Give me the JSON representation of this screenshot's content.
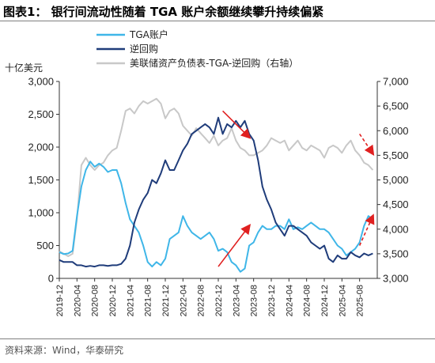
{
  "title": "图表1： 银行间流动性随着 TGA 账户余额继续攀升持续偏紧",
  "source": "资料来源：Wind，华泰研究",
  "colors": {
    "tga": "#3fb6e8",
    "rrp": "#1f3c7a",
    "fed_net": "#c8c8c8",
    "arrow": "#e02020"
  },
  "chart_data": {
    "type": "line",
    "left_unit": "十亿美元",
    "yleft": {
      "min": 0,
      "max": 3000,
      "ticks": [
        "0",
        "500",
        "1,000",
        "1,500",
        "2,000",
        "2,500",
        "3,000"
      ]
    },
    "yright": {
      "min": 3000,
      "max": 7000,
      "ticks": [
        "3,000",
        "3,500",
        "4,000",
        "4,500",
        "5,000",
        "5,500",
        "6,000",
        "6,500",
        "7,000"
      ]
    },
    "x_range": [
      "2019-12",
      "2025-12"
    ],
    "x_ticks": [
      "2019-12",
      "2020-04",
      "2020-08",
      "2020-12",
      "2021-04",
      "2021-08",
      "2021-12",
      "2022-04",
      "2022-08",
      "2022-12",
      "2023-04",
      "2023-08",
      "2023-12",
      "2024-04",
      "2024-08",
      "2024-12",
      "2025-04",
      "2025-08"
    ],
    "series": [
      {
        "name": "TGA账户",
        "axis": "left",
        "points": [
          [
            "2019-12",
            400
          ],
          [
            "2020-01",
            370
          ],
          [
            "2020-02",
            380
          ],
          [
            "2020-03",
            420
          ],
          [
            "2020-04",
            950
          ],
          [
            "2020-05",
            1400
          ],
          [
            "2020-06",
            1650
          ],
          [
            "2020-07",
            1780
          ],
          [
            "2020-08",
            1700
          ],
          [
            "2020-09",
            1750
          ],
          [
            "2020-10",
            1700
          ],
          [
            "2020-11",
            1620
          ],
          [
            "2020-12",
            1650
          ],
          [
            "2021-01",
            1650
          ],
          [
            "2021-02",
            1450
          ],
          [
            "2021-03",
            1150
          ],
          [
            "2021-04",
            900
          ],
          [
            "2021-05",
            800
          ],
          [
            "2021-06",
            700
          ],
          [
            "2021-07",
            500
          ],
          [
            "2021-08",
            250
          ],
          [
            "2021-09",
            180
          ],
          [
            "2021-10",
            250
          ],
          [
            "2021-11",
            200
          ],
          [
            "2021-12",
            300
          ],
          [
            "2022-01",
            600
          ],
          [
            "2022-02",
            650
          ],
          [
            "2022-03",
            700
          ],
          [
            "2022-04",
            950
          ],
          [
            "2022-05",
            800
          ],
          [
            "2022-06",
            700
          ],
          [
            "2022-07",
            650
          ],
          [
            "2022-08",
            600
          ],
          [
            "2022-09",
            650
          ],
          [
            "2022-10",
            700
          ],
          [
            "2022-11",
            600
          ],
          [
            "2022-12",
            420
          ],
          [
            "2023-01",
            450
          ],
          [
            "2023-02",
            400
          ],
          [
            "2023-03",
            250
          ],
          [
            "2023-04",
            200
          ],
          [
            "2023-05",
            100
          ],
          [
            "2023-06",
            150
          ],
          [
            "2023-07",
            500
          ],
          [
            "2023-08",
            550
          ],
          [
            "2023-09",
            700
          ],
          [
            "2023-10",
            800
          ],
          [
            "2023-11",
            750
          ],
          [
            "2023-12",
            750
          ],
          [
            "2024-01",
            800
          ],
          [
            "2024-02",
            800
          ],
          [
            "2024-03",
            750
          ],
          [
            "2024-04",
            900
          ],
          [
            "2024-05",
            750
          ],
          [
            "2024-06",
            780
          ],
          [
            "2024-07",
            750
          ],
          [
            "2024-08",
            800
          ],
          [
            "2024-09",
            850
          ],
          [
            "2024-10",
            800
          ],
          [
            "2024-11",
            750
          ],
          [
            "2024-12",
            750
          ],
          [
            "2025-01",
            700
          ],
          [
            "2025-02",
            600
          ],
          [
            "2025-03",
            500
          ],
          [
            "2025-04",
            450
          ],
          [
            "2025-05",
            350
          ],
          [
            "2025-06",
            400
          ],
          [
            "2025-07",
            450
          ],
          [
            "2025-08",
            550
          ],
          [
            "2025-09",
            800
          ],
          [
            "2025-10",
            950
          ],
          [
            "2025-11",
            900
          ]
        ]
      },
      {
        "name": "逆回购",
        "axis": "left",
        "points": [
          [
            "2019-12",
            280
          ],
          [
            "2020-01",
            250
          ],
          [
            "2020-02",
            250
          ],
          [
            "2020-03",
            250
          ],
          [
            "2020-04",
            200
          ],
          [
            "2020-05",
            200
          ],
          [
            "2020-06",
            180
          ],
          [
            "2020-07",
            190
          ],
          [
            "2020-08",
            180
          ],
          [
            "2020-09",
            200
          ],
          [
            "2020-10",
            200
          ],
          [
            "2020-11",
            190
          ],
          [
            "2020-12",
            200
          ],
          [
            "2021-01",
            200
          ],
          [
            "2021-02",
            220
          ],
          [
            "2021-03",
            300
          ],
          [
            "2021-04",
            500
          ],
          [
            "2021-05",
            850
          ],
          [
            "2021-06",
            1050
          ],
          [
            "2021-07",
            1200
          ],
          [
            "2021-08",
            1300
          ],
          [
            "2021-09",
            1500
          ],
          [
            "2021-10",
            1450
          ],
          [
            "2021-11",
            1600
          ],
          [
            "2021-12",
            1800
          ],
          [
            "2022-01",
            1650
          ],
          [
            "2022-02",
            1650
          ],
          [
            "2022-03",
            1800
          ],
          [
            "2022-04",
            1950
          ],
          [
            "2022-05",
            2050
          ],
          [
            "2022-06",
            2200
          ],
          [
            "2022-07",
            2250
          ],
          [
            "2022-08",
            2300
          ],
          [
            "2022-09",
            2350
          ],
          [
            "2022-10",
            2300
          ],
          [
            "2022-11",
            2200
          ],
          [
            "2022-12",
            2450
          ],
          [
            "2023-01",
            2200
          ],
          [
            "2023-02",
            2350
          ],
          [
            "2023-03",
            2300
          ],
          [
            "2023-04",
            2400
          ],
          [
            "2023-05",
            2300
          ],
          [
            "2023-06",
            2400
          ],
          [
            "2023-07",
            2200
          ],
          [
            "2023-08",
            2100
          ],
          [
            "2023-09",
            1800
          ],
          [
            "2023-10",
            1400
          ],
          [
            "2023-11",
            1200
          ],
          [
            "2023-12",
            1050
          ],
          [
            "2024-01",
            850
          ],
          [
            "2024-02",
            750
          ],
          [
            "2024-03",
            650
          ],
          [
            "2024-04",
            800
          ],
          [
            "2024-05",
            800
          ],
          [
            "2024-06",
            750
          ],
          [
            "2024-07",
            700
          ],
          [
            "2024-08",
            650
          ],
          [
            "2024-09",
            550
          ],
          [
            "2024-10",
            500
          ],
          [
            "2024-11",
            450
          ],
          [
            "2024-12",
            500
          ],
          [
            "2025-01",
            300
          ],
          [
            "2025-02",
            250
          ],
          [
            "2025-03",
            350
          ],
          [
            "2025-04",
            300
          ],
          [
            "2025-05",
            300
          ],
          [
            "2025-06",
            400
          ],
          [
            "2025-07",
            350
          ],
          [
            "2025-08",
            320
          ],
          [
            "2025-09",
            380
          ],
          [
            "2025-10",
            350
          ],
          [
            "2025-11",
            380
          ]
        ]
      },
      {
        "name": "美联储资产负债表-TGA-逆回购（右轴）",
        "axis": "right",
        "points": [
          [
            "2019-12",
            3550
          ],
          [
            "2020-01",
            3500
          ],
          [
            "2020-02",
            3450
          ],
          [
            "2020-03",
            3500
          ],
          [
            "2020-04",
            4200
          ],
          [
            "2020-05",
            5300
          ],
          [
            "2020-06",
            5450
          ],
          [
            "2020-07",
            5300
          ],
          [
            "2020-08",
            5200
          ],
          [
            "2020-09",
            5300
          ],
          [
            "2020-10",
            5350
          ],
          [
            "2020-11",
            5500
          ],
          [
            "2020-12",
            5600
          ],
          [
            "2021-01",
            5650
          ],
          [
            "2021-02",
            6000
          ],
          [
            "2021-03",
            6400
          ],
          [
            "2021-04",
            6450
          ],
          [
            "2021-05",
            6350
          ],
          [
            "2021-06",
            6500
          ],
          [
            "2021-07",
            6600
          ],
          [
            "2021-08",
            6550
          ],
          [
            "2021-09",
            6600
          ],
          [
            "2021-10",
            6650
          ],
          [
            "2021-11",
            6550
          ],
          [
            "2021-12",
            6250
          ],
          [
            "2022-01",
            6400
          ],
          [
            "2022-02",
            6450
          ],
          [
            "2022-03",
            6350
          ],
          [
            "2022-04",
            6100
          ],
          [
            "2022-05",
            6000
          ],
          [
            "2022-06",
            5900
          ],
          [
            "2022-07",
            6050
          ],
          [
            "2022-08",
            5950
          ],
          [
            "2022-09",
            5850
          ],
          [
            "2022-10",
            5750
          ],
          [
            "2022-11",
            5900
          ],
          [
            "2022-12",
            5700
          ],
          [
            "2023-01",
            5800
          ],
          [
            "2023-02",
            5850
          ],
          [
            "2023-03",
            6050
          ],
          [
            "2023-04",
            5800
          ],
          [
            "2023-05",
            5650
          ],
          [
            "2023-06",
            5600
          ],
          [
            "2023-07",
            5500
          ],
          [
            "2023-08",
            5500
          ],
          [
            "2023-09",
            5550
          ],
          [
            "2023-10",
            5600
          ],
          [
            "2023-11",
            5700
          ],
          [
            "2023-12",
            5850
          ],
          [
            "2024-01",
            5800
          ],
          [
            "2024-02",
            5750
          ],
          [
            "2024-03",
            5800
          ],
          [
            "2024-04",
            5600
          ],
          [
            "2024-05",
            5700
          ],
          [
            "2024-06",
            5800
          ],
          [
            "2024-07",
            5650
          ],
          [
            "2024-08",
            5600
          ],
          [
            "2024-09",
            5700
          ],
          [
            "2024-10",
            5650
          ],
          [
            "2024-11",
            5600
          ],
          [
            "2024-12",
            5450
          ],
          [
            "2025-01",
            5650
          ],
          [
            "2025-02",
            5700
          ],
          [
            "2025-03",
            5650
          ],
          [
            "2025-04",
            5550
          ],
          [
            "2025-05",
            5700
          ],
          [
            "2025-06",
            5800
          ],
          [
            "2025-07",
            5600
          ],
          [
            "2025-08",
            5500
          ],
          [
            "2025-09",
            5350
          ],
          [
            "2025-10",
            5300
          ],
          [
            "2025-11",
            5200
          ]
        ]
      }
    ],
    "annotations": [
      {
        "type": "arrow",
        "style": "solid",
        "from": [
          "2023-01",
          2550
        ],
        "to": [
          "2023-07",
          2150
        ],
        "axis": "left"
      },
      {
        "type": "arrow",
        "style": "solid",
        "from": [
          "2022-12",
          180
        ],
        "to": [
          "2023-07",
          800
        ],
        "axis": "left"
      },
      {
        "type": "arrow",
        "style": "dashed",
        "from": [
          "2025-08",
          2200
        ],
        "to": [
          "2025-11",
          1900
        ],
        "axis": "left"
      },
      {
        "type": "arrow",
        "style": "dashed",
        "from": [
          "2025-08",
          500
        ],
        "to": [
          "2025-11",
          950
        ],
        "axis": "left"
      }
    ]
  }
}
